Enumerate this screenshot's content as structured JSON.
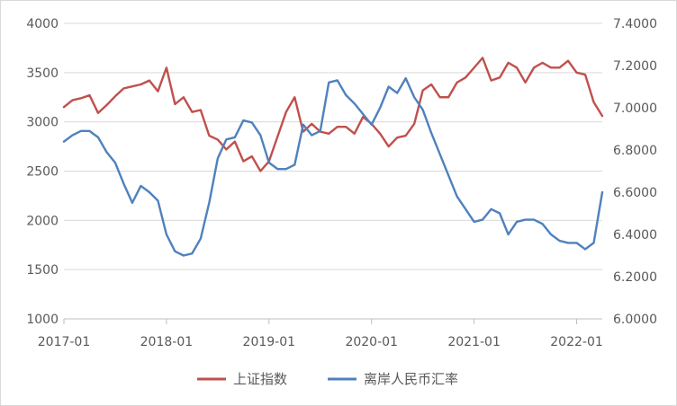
{
  "chart_data": {
    "type": "line",
    "title": "",
    "xlabel": "",
    "ylabel": "",
    "x_ticks": [
      "2017-01",
      "2018-01",
      "2019-01",
      "2020-01",
      "2021-01",
      "2022-01"
    ],
    "x_range": [
      "2017-01",
      "2022-04"
    ],
    "y_left": {
      "ticks": [
        "1000",
        "1500",
        "2000",
        "2500",
        "3000",
        "3500",
        "4000"
      ],
      "range": [
        1000,
        4000
      ]
    },
    "y_right": {
      "ticks": [
        "6.0000",
        "6.2000",
        "6.4000",
        "6.6000",
        "6.8000",
        "7.0000",
        "7.2000",
        "7.4000"
      ],
      "range": [
        6.0,
        7.4
      ]
    },
    "grid": "horizontal",
    "legend_position": "bottom",
    "series": [
      {
        "name": "上证指数",
        "axis": "left",
        "color": "#C0504D",
        "points": [
          [
            "2017-01",
            3150
          ],
          [
            "2017-02",
            3220
          ],
          [
            "2017-03",
            3240
          ],
          [
            "2017-04",
            3270
          ],
          [
            "2017-05",
            3090
          ],
          [
            "2017-06",
            3170
          ],
          [
            "2017-07",
            3260
          ],
          [
            "2017-08",
            3340
          ],
          [
            "2017-09",
            3360
          ],
          [
            "2017-10",
            3380
          ],
          [
            "2017-11",
            3420
          ],
          [
            "2017-12",
            3310
          ],
          [
            "2018-01",
            3550
          ],
          [
            "2018-02",
            3180
          ],
          [
            "2018-03",
            3250
          ],
          [
            "2018-04",
            3100
          ],
          [
            "2018-05",
            3120
          ],
          [
            "2018-06",
            2860
          ],
          [
            "2018-07",
            2820
          ],
          [
            "2018-08",
            2720
          ],
          [
            "2018-09",
            2800
          ],
          [
            "2018-10",
            2600
          ],
          [
            "2018-11",
            2650
          ],
          [
            "2018-12",
            2500
          ],
          [
            "2019-01",
            2600
          ],
          [
            "2019-02",
            2850
          ],
          [
            "2019-03",
            3100
          ],
          [
            "2019-04",
            3250
          ],
          [
            "2019-05",
            2900
          ],
          [
            "2019-06",
            2980
          ],
          [
            "2019-07",
            2900
          ],
          [
            "2019-08",
            2880
          ],
          [
            "2019-09",
            2950
          ],
          [
            "2019-10",
            2950
          ],
          [
            "2019-11",
            2880
          ],
          [
            "2019-12",
            3050
          ],
          [
            "2020-01",
            2980
          ],
          [
            "2020-02",
            2880
          ],
          [
            "2020-03",
            2750
          ],
          [
            "2020-04",
            2840
          ],
          [
            "2020-05",
            2860
          ],
          [
            "2020-06",
            2980
          ],
          [
            "2020-07",
            3320
          ],
          [
            "2020-08",
            3380
          ],
          [
            "2020-09",
            3250
          ],
          [
            "2020-10",
            3250
          ],
          [
            "2020-11",
            3400
          ],
          [
            "2020-12",
            3450
          ],
          [
            "2021-01",
            3550
          ],
          [
            "2021-02",
            3650
          ],
          [
            "2021-03",
            3420
          ],
          [
            "2021-04",
            3450
          ],
          [
            "2021-05",
            3600
          ],
          [
            "2021-06",
            3550
          ],
          [
            "2021-07",
            3400
          ],
          [
            "2021-08",
            3550
          ],
          [
            "2021-09",
            3600
          ],
          [
            "2021-10",
            3550
          ],
          [
            "2021-11",
            3550
          ],
          [
            "2021-12",
            3620
          ],
          [
            "2022-01",
            3500
          ],
          [
            "2022-02",
            3480
          ],
          [
            "2022-03",
            3200
          ],
          [
            "2022-04",
            3060
          ]
        ]
      },
      {
        "name": "离岸人民币汇率",
        "axis": "right",
        "color": "#4F81BD",
        "points": [
          [
            "2017-01",
            6.84
          ],
          [
            "2017-02",
            6.87
          ],
          [
            "2017-03",
            6.89
          ],
          [
            "2017-04",
            6.89
          ],
          [
            "2017-05",
            6.86
          ],
          [
            "2017-06",
            6.79
          ],
          [
            "2017-07",
            6.74
          ],
          [
            "2017-08",
            6.64
          ],
          [
            "2017-09",
            6.55
          ],
          [
            "2017-10",
            6.63
          ],
          [
            "2017-11",
            6.6
          ],
          [
            "2017-12",
            6.56
          ],
          [
            "2018-01",
            6.4
          ],
          [
            "2018-02",
            6.32
          ],
          [
            "2018-03",
            6.3
          ],
          [
            "2018-04",
            6.31
          ],
          [
            "2018-05",
            6.38
          ],
          [
            "2018-06",
            6.55
          ],
          [
            "2018-07",
            6.76
          ],
          [
            "2018-08",
            6.85
          ],
          [
            "2018-09",
            6.86
          ],
          [
            "2018-10",
            6.94
          ],
          [
            "2018-11",
            6.93
          ],
          [
            "2018-12",
            6.87
          ],
          [
            "2019-01",
            6.74
          ],
          [
            "2019-02",
            6.71
          ],
          [
            "2019-03",
            6.71
          ],
          [
            "2019-04",
            6.73
          ],
          [
            "2019-05",
            6.92
          ],
          [
            "2019-06",
            6.87
          ],
          [
            "2019-07",
            6.89
          ],
          [
            "2019-08",
            7.12
          ],
          [
            "2019-09",
            7.13
          ],
          [
            "2019-10",
            7.06
          ],
          [
            "2019-11",
            7.02
          ],
          [
            "2019-12",
            6.97
          ],
          [
            "2020-01",
            6.92
          ],
          [
            "2020-02",
            7.0
          ],
          [
            "2020-03",
            7.1
          ],
          [
            "2020-04",
            7.07
          ],
          [
            "2020-05",
            7.14
          ],
          [
            "2020-06",
            7.05
          ],
          [
            "2020-07",
            6.99
          ],
          [
            "2020-08",
            6.88
          ],
          [
            "2020-09",
            6.78
          ],
          [
            "2020-10",
            6.68
          ],
          [
            "2020-11",
            6.58
          ],
          [
            "2020-12",
            6.52
          ],
          [
            "2021-01",
            6.46
          ],
          [
            "2021-02",
            6.47
          ],
          [
            "2021-03",
            6.52
          ],
          [
            "2021-04",
            6.5
          ],
          [
            "2021-05",
            6.4
          ],
          [
            "2021-06",
            6.46
          ],
          [
            "2021-07",
            6.47
          ],
          [
            "2021-08",
            6.47
          ],
          [
            "2021-09",
            6.45
          ],
          [
            "2021-10",
            6.4
          ],
          [
            "2021-11",
            6.37
          ],
          [
            "2021-12",
            6.36
          ],
          [
            "2022-01",
            6.36
          ],
          [
            "2022-02",
            6.33
          ],
          [
            "2022-03",
            6.36
          ],
          [
            "2022-04",
            6.6
          ]
        ]
      }
    ]
  }
}
